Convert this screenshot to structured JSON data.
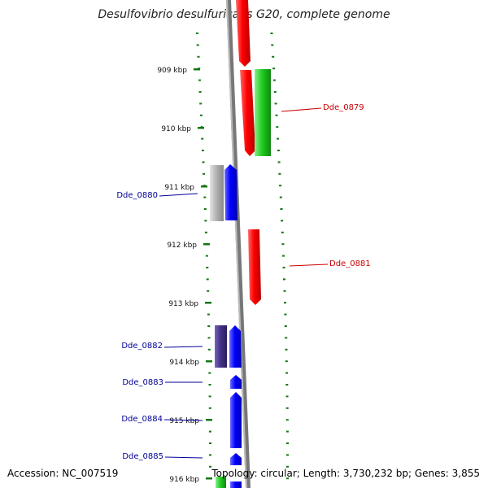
{
  "title": "Desulfovibrio desulfuricans G20, complete genome",
  "colors": {
    "forward": "#ff0000",
    "reverse": "#0000ff",
    "green": "#22cc22",
    "gray": "#aaaaaa",
    "purple": "#443388",
    "tick": "#117711"
  },
  "ticks": [
    "909 kbp",
    "910 kbp",
    "911 kbp",
    "912 kbp",
    "913 kbp",
    "914 kbp",
    "915 kbp",
    "916 kbp"
  ],
  "genes": [
    {
      "label": "Dde_0879",
      "color": "#cc0000"
    },
    {
      "label": "Dde_0880",
      "color": "#000099"
    },
    {
      "label": "Dde_0881",
      "color": "#cc0000"
    },
    {
      "label": "Dde_0882",
      "color": "#000099"
    },
    {
      "label": "Dde_0883",
      "color": "#000099"
    },
    {
      "label": "Dde_0884",
      "color": "#000099"
    },
    {
      "label": "Dde_0885",
      "color": "#000099"
    }
  ],
  "footer": {
    "accession": "Accession: NC_007519",
    "summary": "Topology: circular; Length: 3,730,232 bp; Genes: 3,855"
  }
}
